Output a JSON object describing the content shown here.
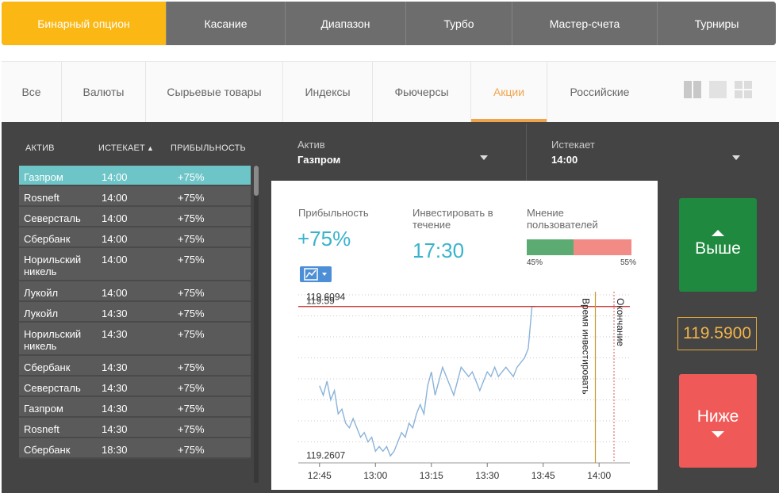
{
  "top_tabs": [
    {
      "label": "Бинарный опцион",
      "active": true
    },
    {
      "label": "Касание",
      "active": false
    },
    {
      "label": "Диапазон",
      "active": false
    },
    {
      "label": "Турбо",
      "active": false
    },
    {
      "label": "Мастер-счета",
      "active": false
    },
    {
      "label": "Турниры",
      "active": false
    }
  ],
  "filters": [
    {
      "label": "Все",
      "active": false
    },
    {
      "label": "Валюты",
      "active": false
    },
    {
      "label": "Сырьевые товары",
      "active": false
    },
    {
      "label": "Индексы",
      "active": false
    },
    {
      "label": "Фьючерсы",
      "active": false
    },
    {
      "label": "Акции",
      "active": true
    },
    {
      "label": "Российские",
      "active": false
    }
  ],
  "view_icons": [
    "single-view-icon",
    "wide-view-icon",
    "grid-view-icon"
  ],
  "asset_table": {
    "headers": {
      "asset": "Актив",
      "expires": "Истекает",
      "expires_arrow": "▲",
      "profit": "Прибыльность"
    },
    "rows": [
      {
        "asset": "Газпром",
        "expires": "14:00",
        "profit": "+75%",
        "selected": true
      },
      {
        "asset": "Rosneft",
        "expires": "14:00",
        "profit": "+75%"
      },
      {
        "asset": "Северсталь",
        "expires": "14:00",
        "profit": "+75%"
      },
      {
        "asset": "Сбербанк",
        "expires": "14:00",
        "profit": "+75%"
      },
      {
        "asset": "Норильский никель",
        "expires": "14:00",
        "profit": "+75%"
      },
      {
        "asset": "Лукойл",
        "expires": "14:00",
        "profit": "+75%"
      },
      {
        "asset": "Лукойл",
        "expires": "14:30",
        "profit": "+75%"
      },
      {
        "asset": "Норильский никель",
        "expires": "14:30",
        "profit": "+75%"
      },
      {
        "asset": "Сбербанк",
        "expires": "14:30",
        "profit": "+75%"
      },
      {
        "asset": "Северсталь",
        "expires": "14:30",
        "profit": "+75%"
      },
      {
        "asset": "Газпром",
        "expires": "14:30",
        "profit": "+75%"
      },
      {
        "asset": "Rosneft",
        "expires": "14:30",
        "profit": "+75%"
      },
      {
        "asset": "Сбербанк",
        "expires": "18:30",
        "profit": "+75%"
      }
    ]
  },
  "asset_selector": {
    "label": "Актив",
    "value": "Газпром"
  },
  "expiry_selector": {
    "label": "Истекает",
    "value": "14:00"
  },
  "stats": {
    "profit_label": "Прибыльность",
    "profit_value": "+75%",
    "invest_label_1": "Инвестировать в",
    "invest_label_2": "течение",
    "invest_value": "17:30",
    "opinion_label_1": "Мнение",
    "opinion_label_2": "пользователей",
    "opinion_left": "45%",
    "opinion_right": "55%",
    "opinion_left_fraction": 0.45
  },
  "colors": {
    "accent": "#fbb714",
    "up": "#1f8a3f",
    "down": "#ef5a58",
    "price": "#f1b44a",
    "teal": "#39b3cc"
  },
  "chart_data": {
    "type": "line",
    "x_ticks": [
      "12:45",
      "13:00",
      "13:15",
      "13:30",
      "13:45",
      "14:00"
    ],
    "x_range_minutes": [
      0,
      77
    ],
    "y_range": [
      119.255,
      119.615
    ],
    "labels": {
      "high": "119.6094",
      "current": "119.59",
      "low": "119.2607"
    },
    "current_level": 119.59,
    "invest_deadline_label": "Время инвестировать",
    "invest_deadline_minute": 74,
    "expiry_label": "Окончание",
    "expiry_minute": 79,
    "series": [
      {
        "values": [
          [
            0,
            119.42
          ],
          [
            1,
            119.4
          ],
          [
            2,
            119.43
          ],
          [
            3,
            119.39
          ],
          [
            4,
            119.41
          ],
          [
            5,
            119.36
          ],
          [
            6,
            119.37
          ],
          [
            7,
            119.34
          ],
          [
            8,
            119.33
          ],
          [
            9,
            119.35
          ],
          [
            10,
            119.33
          ],
          [
            11,
            119.31
          ],
          [
            12,
            119.32
          ],
          [
            13,
            119.3
          ],
          [
            14,
            119.31
          ],
          [
            15,
            119.28
          ],
          [
            16,
            119.29
          ],
          [
            17,
            119.28
          ],
          [
            18,
            119.29
          ],
          [
            19,
            119.27
          ],
          [
            20,
            119.28
          ],
          [
            21,
            119.3
          ],
          [
            22,
            119.32
          ],
          [
            23,
            119.31
          ],
          [
            24,
            119.34
          ],
          [
            25,
            119.33
          ],
          [
            26,
            119.36
          ],
          [
            27,
            119.38
          ],
          [
            28,
            119.36
          ],
          [
            29,
            119.42
          ],
          [
            30,
            119.45
          ],
          [
            31,
            119.4
          ],
          [
            32,
            119.43
          ],
          [
            33,
            119.46
          ],
          [
            34,
            119.44
          ],
          [
            35,
            119.42
          ],
          [
            36,
            119.4
          ],
          [
            37,
            119.43
          ],
          [
            38,
            119.46
          ],
          [
            39,
            119.45
          ],
          [
            40,
            119.44
          ],
          [
            41,
            119.45
          ],
          [
            42,
            119.43
          ],
          [
            43,
            119.41
          ],
          [
            44,
            119.43
          ],
          [
            45,
            119.45
          ],
          [
            46,
            119.44
          ],
          [
            47,
            119.46
          ],
          [
            48,
            119.44
          ],
          [
            49,
            119.45
          ],
          [
            50,
            119.46
          ],
          [
            51,
            119.45
          ],
          [
            52,
            119.44
          ],
          [
            53,
            119.46
          ],
          [
            54,
            119.47
          ],
          [
            55,
            119.48
          ],
          [
            56,
            119.5
          ],
          [
            57,
            119.59
          ],
          [
            58,
            119.59
          ]
        ]
      }
    ]
  },
  "right_panel": {
    "up_label": "Выше",
    "down_label": "Ниже",
    "current_price": "119.5900"
  }
}
